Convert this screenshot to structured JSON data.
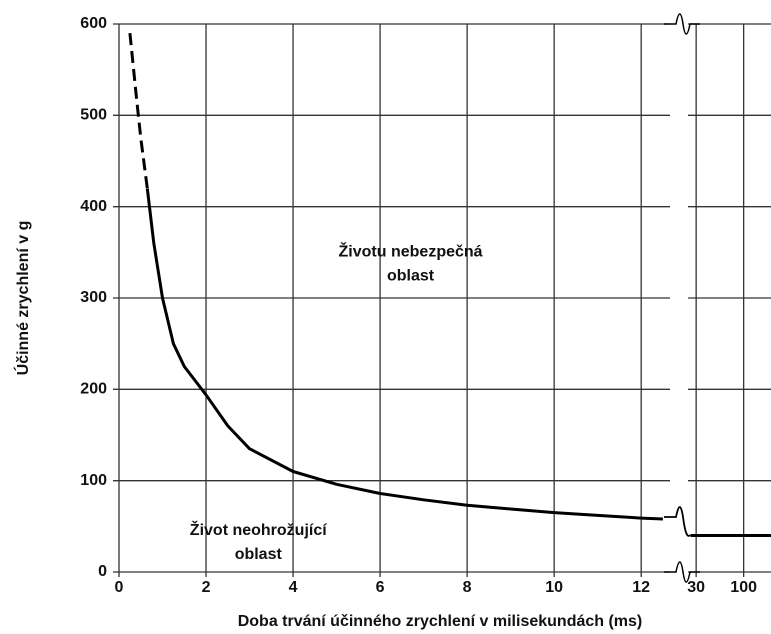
{
  "chart_data": {
    "type": "line",
    "xlabel": "Doba trvání účinného zrychlení v milisekundách (ms)",
    "ylabel": "Účinné zrychlení v g",
    "xlim": [
      0,
      12.8
    ],
    "xticks": [
      0,
      2,
      4,
      6,
      8,
      10,
      12
    ],
    "x2lim": [
      18,
      200
    ],
    "x2scale": "log",
    "x2ticks": [
      30,
      100
    ],
    "ylim": [
      0,
      600
    ],
    "yticks": [
      0,
      100,
      200,
      300,
      400,
      500,
      600
    ],
    "grid": true,
    "annotations": [
      {
        "lines": [
          "Životu nebezpečná",
          "oblast"
        ],
        "x": 6.7,
        "y": 350
      },
      {
        "lines": [
          "Život neohrožující",
          "oblast"
        ],
        "x": 3.2,
        "y": 45
      }
    ],
    "series": [
      {
        "color": "#000000",
        "dash": true,
        "x": [
          0.25,
          0.4,
          0.5,
          0.65
        ],
        "values": [
          590,
          520,
          475,
          420
        ]
      },
      {
        "color": "#000000",
        "dash": false,
        "x": [
          0.65,
          0.8,
          1,
          1.25,
          1.5,
          2,
          2.5,
          3,
          4,
          5,
          6,
          7,
          8,
          9,
          10,
          11,
          12,
          12.5
        ],
        "values": [
          420,
          360,
          300,
          250,
          225,
          194,
          160,
          135,
          110,
          96,
          86,
          79,
          73,
          69,
          65,
          62,
          59,
          58
        ]
      },
      {
        "color": "#000000",
        "dash": false,
        "axis": "x2",
        "x": [
          26,
          200
        ],
        "values": [
          40,
          40
        ]
      }
    ]
  }
}
